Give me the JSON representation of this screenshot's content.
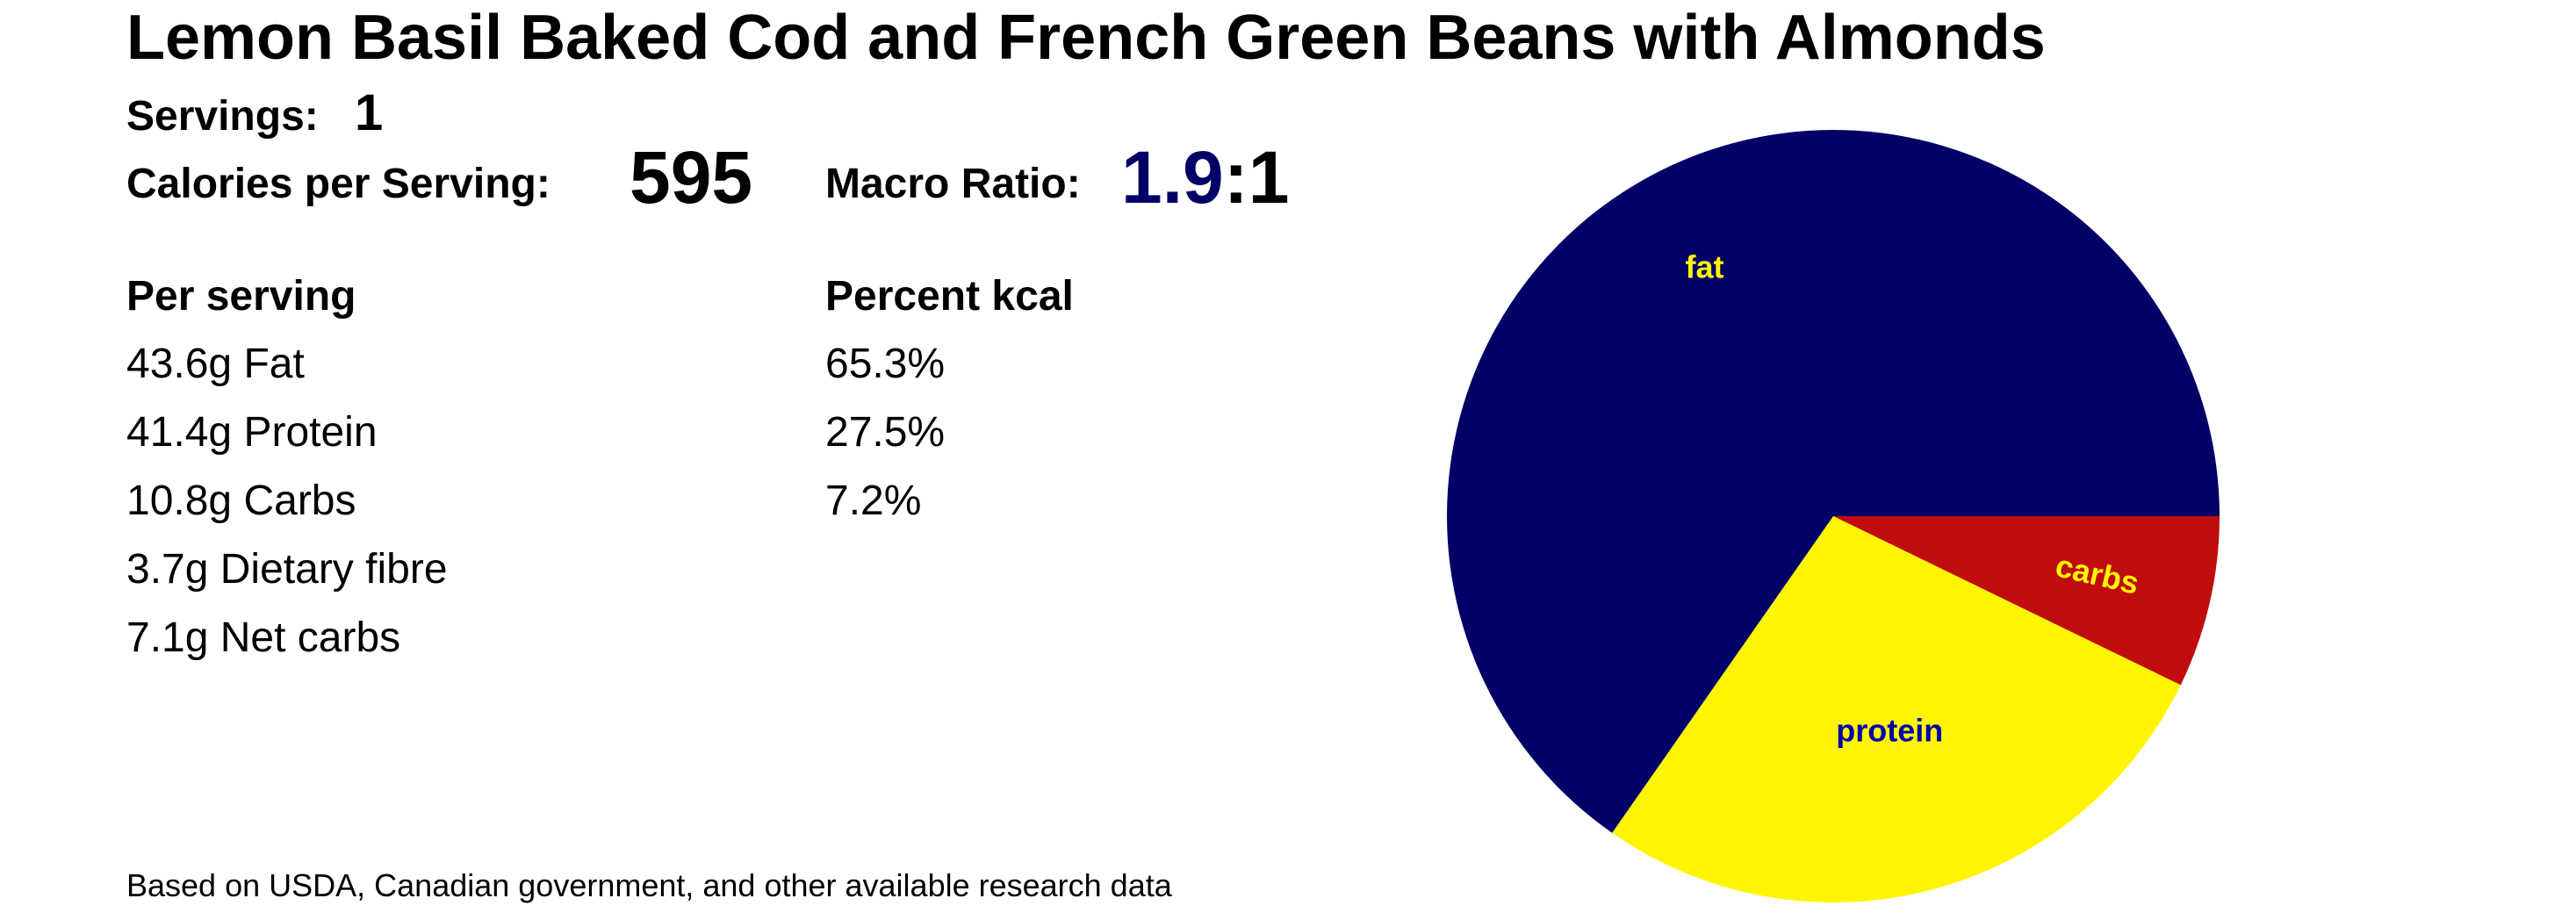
{
  "title": "Lemon Basil Baked Cod and French Green Beans with Almonds",
  "servings": {
    "label": "Servings:",
    "value": "1"
  },
  "calories": {
    "label": "Calories per Serving:",
    "value": "595"
  },
  "macro_ratio": {
    "label": "Macro Ratio:",
    "value": "1.9",
    "separator": ":",
    "suffix": "1"
  },
  "per_serving": {
    "header": "Per serving",
    "rows": [
      "43.6g Fat",
      "41.4g Protein",
      "10.8g Carbs",
      "3.7g Dietary fibre",
      "7.1g Net carbs"
    ]
  },
  "percent_kcal": {
    "header": "Percent kcal",
    "rows": [
      "65.3%",
      "27.5%",
      "7.2%"
    ]
  },
  "footnote": "Based on USDA, Canadian government, and other available research data",
  "colors": {
    "fat": "#000066",
    "protein": "#FFF500",
    "carbs": "#C00C0C",
    "fat_label": "#FFF500",
    "protein_label": "#0000AA",
    "carbs_label": "#FFF500",
    "ratio_accent": "#000066"
  },
  "chart_data": {
    "type": "pie",
    "title": "",
    "categories": [
      "fat",
      "protein",
      "carbs"
    ],
    "values": [
      65.3,
      27.5,
      7.2
    ],
    "start": "3 o'clock",
    "direction": "clockwise from carbs",
    "legend": "none"
  }
}
